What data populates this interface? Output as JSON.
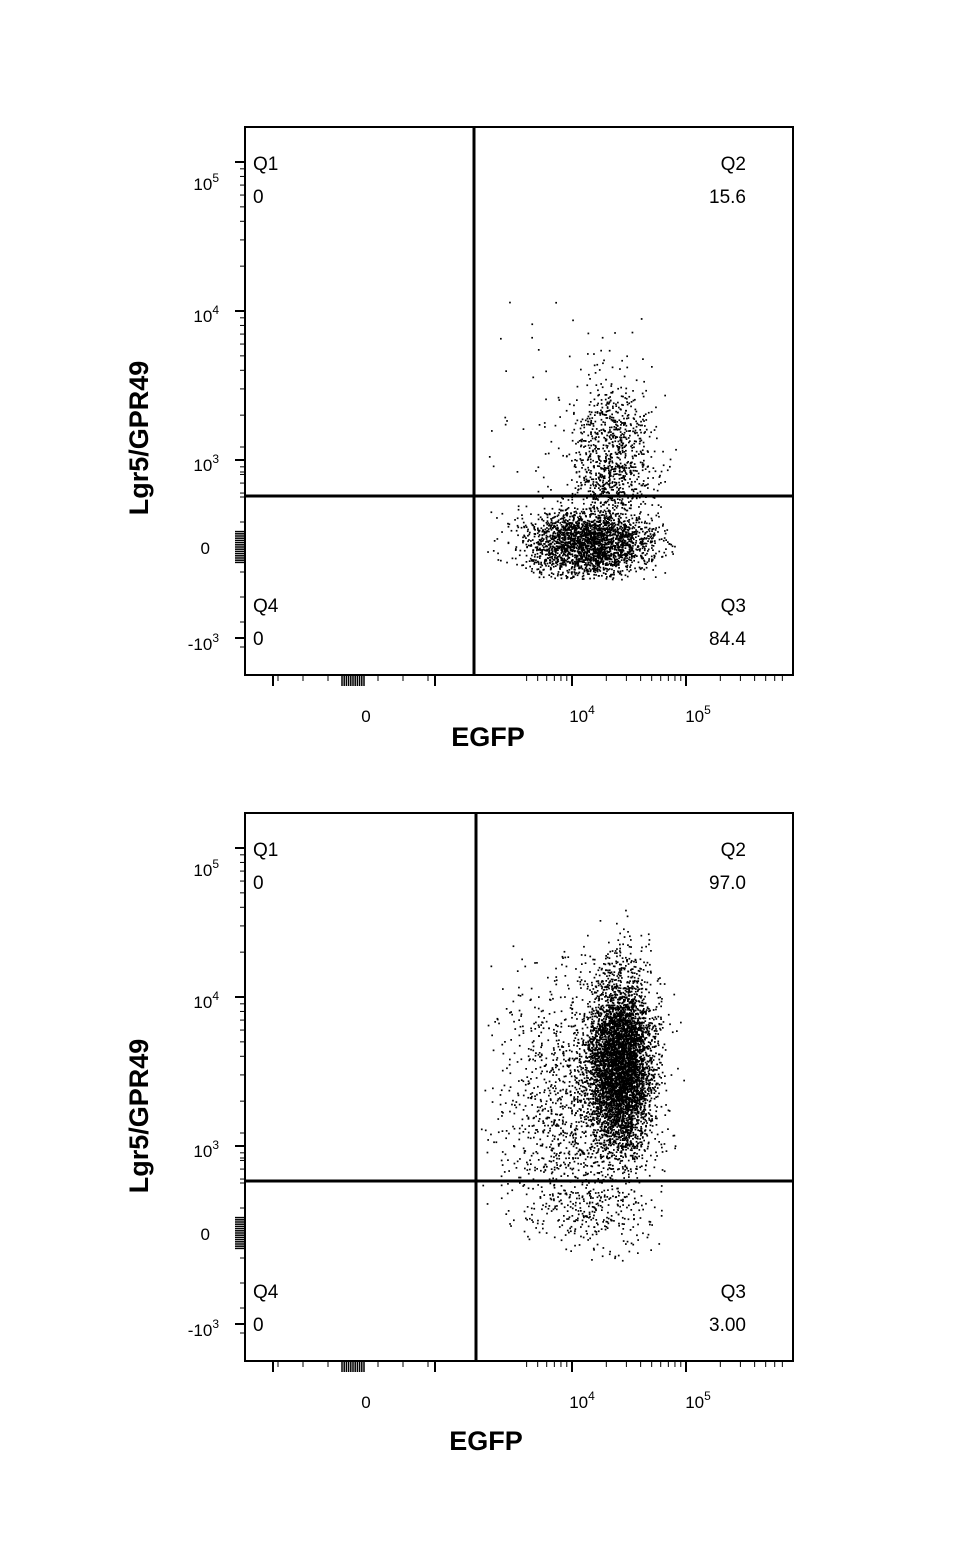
{
  "chart_data": [
    {
      "type": "scatter",
      "title": "",
      "xlabel": "EGFP",
      "ylabel": "Lgr5/GPR49",
      "x_scale": "biexponential",
      "y_scale": "biexponential",
      "x_ticks": [
        {
          "base": "0",
          "exp": ""
        },
        {
          "base": "10",
          "exp": "4"
        },
        {
          "base": "10",
          "exp": "5"
        }
      ],
      "y_ticks": [
        {
          "base": "10",
          "exp": "5"
        },
        {
          "base": "10",
          "exp": "4"
        },
        {
          "base": "10",
          "exp": "3"
        },
        {
          "base": "0",
          "exp": ""
        },
        {
          "base": "-10",
          "exp": "3"
        }
      ],
      "x_gate": 1700,
      "y_gate": 500,
      "quadrants": [
        {
          "name": "Q1",
          "value": "0"
        },
        {
          "name": "Q2",
          "value": "15.6"
        },
        {
          "name": "Q3",
          "value": "84.4"
        },
        {
          "name": "Q4",
          "value": "0"
        }
      ],
      "populations": [
        {
          "x_log_center": 4.15,
          "x_log_sd": 0.28,
          "y_log_center": 2.45,
          "y_log_sd": 0.12,
          "count": 2600,
          "x_log_range": [
            3.2,
            4.9
          ],
          "y_log_range": [
            2.2,
            2.7
          ]
        },
        {
          "x_log_center": 4.35,
          "x_log_sd": 0.18,
          "y_log_center": 2.95,
          "y_log_sd": 0.28,
          "count": 900,
          "x_log_range": [
            3.6,
            5.0
          ],
          "y_log_range": [
            2.7,
            4.2
          ]
        },
        {
          "x_log_center": 3.9,
          "x_log_sd": 0.45,
          "y_log_center": 3.2,
          "y_log_sd": 0.4,
          "count": 70,
          "x_log_range": [
            3.2,
            5.0
          ],
          "y_log_range": [
            2.7,
            4.1
          ]
        }
      ]
    },
    {
      "type": "scatter",
      "title": "",
      "xlabel": "EGFP",
      "ylabel": "Lgr5/GPR49",
      "x_scale": "biexponential",
      "y_scale": "biexponential",
      "x_ticks": [
        {
          "base": "0",
          "exp": ""
        },
        {
          "base": "10",
          "exp": "4"
        },
        {
          "base": "10",
          "exp": "5"
        }
      ],
      "y_ticks": [
        {
          "base": "10",
          "exp": "5"
        },
        {
          "base": "10",
          "exp": "4"
        },
        {
          "base": "10",
          "exp": "3"
        },
        {
          "base": "0",
          "exp": ""
        },
        {
          "base": "-10",
          "exp": "3"
        }
      ],
      "x_gate": 1700,
      "y_gate": 500,
      "quadrants": [
        {
          "name": "Q1",
          "value": "0"
        },
        {
          "name": "Q2",
          "value": "97.0"
        },
        {
          "name": "Q3",
          "value": "3.00"
        },
        {
          "name": "Q4",
          "value": "0"
        }
      ],
      "populations": [
        {
          "x_log_center": 4.42,
          "x_log_sd": 0.14,
          "y_log_center": 3.55,
          "y_log_sd": 0.3,
          "count": 5200,
          "x_log_range": [
            3.8,
            5.05
          ],
          "y_log_range": [
            2.7,
            4.6
          ]
        },
        {
          "x_log_center": 4.0,
          "x_log_sd": 0.35,
          "y_log_center": 3.25,
          "y_log_sd": 0.45,
          "count": 1300,
          "x_log_range": [
            3.2,
            5.0
          ],
          "y_log_range": [
            2.5,
            4.4
          ]
        },
        {
          "x_log_center": 4.2,
          "x_log_sd": 0.3,
          "y_log_center": 2.55,
          "y_log_sd": 0.15,
          "count": 220,
          "x_log_range": [
            3.3,
            4.8
          ],
          "y_log_range": [
            2.2,
            2.7
          ]
        }
      ]
    }
  ]
}
